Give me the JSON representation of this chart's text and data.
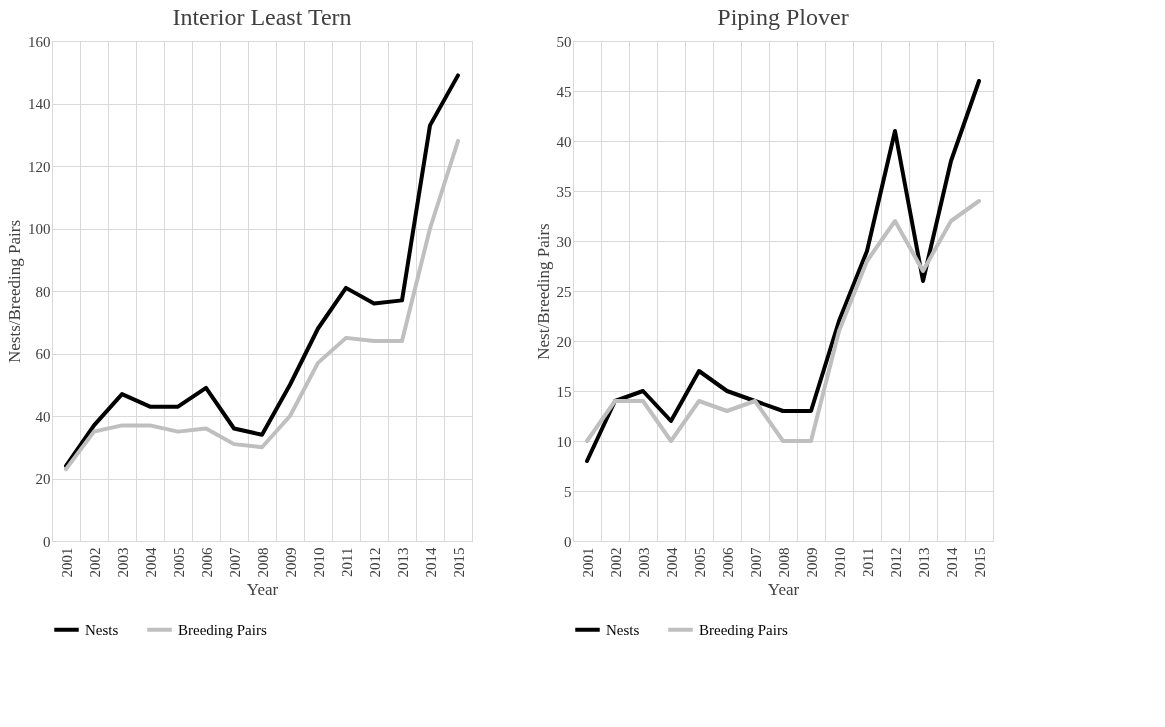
{
  "chart_data": [
    {
      "type": "line",
      "title": "Interior Least Tern",
      "xlabel": "Year",
      "ylabel": "Nests/Breeding Pairs",
      "categories": [
        "2001",
        "2002",
        "2003",
        "2004",
        "2005",
        "2006",
        "2007",
        "2008",
        "2009",
        "2010",
        "2011",
        "2012",
        "2013",
        "2014",
        "2015"
      ],
      "series": [
        {
          "name": "Nests",
          "color": "#000000",
          "values": [
            24,
            37,
            47,
            43,
            43,
            49,
            36,
            34,
            50,
            68,
            81,
            76,
            77,
            133,
            149
          ]
        },
        {
          "name": "Breeding Pairs",
          "color": "#bfbfbf",
          "values": [
            23,
            35,
            37,
            37,
            35,
            36,
            31,
            30,
            40,
            57,
            65,
            64,
            64,
            100,
            128
          ]
        }
      ],
      "ylim": [
        0,
        160
      ],
      "yticks": [
        0,
        20,
        40,
        60,
        80,
        100,
        120,
        140,
        160
      ],
      "grid": true,
      "legend": "bottom",
      "marker": "none",
      "line_style": "solid"
    },
    {
      "type": "line",
      "title": "Piping Plover",
      "xlabel": "Year",
      "ylabel": "Nest/Breeding Pairs",
      "categories": [
        "2001",
        "2002",
        "2003",
        "2004",
        "2005",
        "2006",
        "2007",
        "2008",
        "2009",
        "2010",
        "2011",
        "2012",
        "2013",
        "2014",
        "2015"
      ],
      "series": [
        {
          "name": "Nests",
          "color": "#000000",
          "values": [
            8,
            14,
            15,
            12,
            17,
            15,
            14,
            13,
            13,
            22,
            29,
            41,
            26,
            38,
            46
          ]
        },
        {
          "name": "Breeding Pairs",
          "color": "#bfbfbf",
          "values": [
            10,
            14,
            14,
            10,
            14,
            13,
            14,
            10,
            10,
            21,
            28,
            32,
            27,
            32,
            34
          ]
        }
      ],
      "ylim": [
        0,
        50
      ],
      "yticks": [
        0,
        5,
        10,
        15,
        20,
        25,
        30,
        35,
        40,
        45,
        50
      ],
      "grid": true,
      "legend": "bottom",
      "marker": "none",
      "line_style": "solid"
    }
  ]
}
